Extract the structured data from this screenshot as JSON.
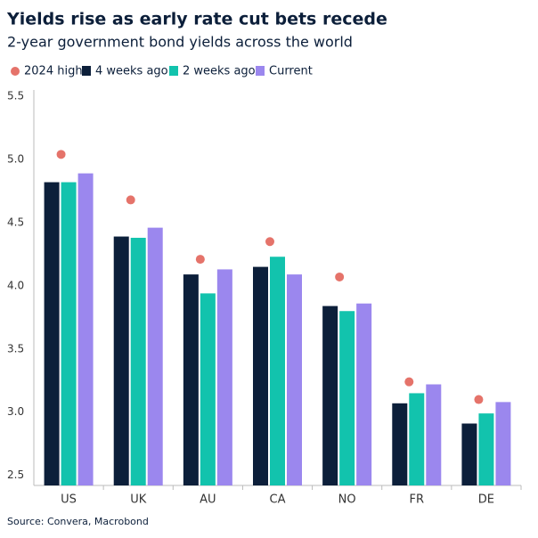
{
  "chart_data": {
    "type": "bar",
    "title": "Yields rise as early rate cut bets recede",
    "subtitle": "2-year government bond yields across the world",
    "source": "Source: Convera, Macrobond",
    "categories": [
      "US",
      "UK",
      "AU",
      "CA",
      "NO",
      "FR",
      "DE"
    ],
    "markers": {
      "name": "2024 high",
      "color": "#e5736a",
      "values": [
        5.04,
        4.68,
        4.21,
        4.35,
        4.07,
        3.24,
        3.1
      ]
    },
    "series": [
      {
        "name": "4 weeks ago",
        "color": "#0c1f3a",
        "values": [
          4.82,
          4.39,
          4.09,
          4.15,
          3.84,
          3.07,
          2.91
        ]
      },
      {
        "name": "2 weeks ago",
        "color": "#12c3ad",
        "values": [
          4.82,
          4.38,
          3.94,
          4.23,
          3.8,
          3.15,
          2.99
        ]
      },
      {
        "name": "Current",
        "color": "#9b87ee",
        "values": [
          4.89,
          4.46,
          4.13,
          4.09,
          3.86,
          3.22,
          3.08
        ]
      }
    ],
    "ylim": [
      2.42,
      5.55
    ],
    "yticks": [
      {
        "value": 2.5,
        "label": "2.5"
      },
      {
        "value": 3,
        "label": "3.0"
      },
      {
        "value": 3.5,
        "label": "3.5"
      },
      {
        "value": 4,
        "label": "4.0"
      },
      {
        "value": 4.5,
        "label": "4.5"
      },
      {
        "value": 5,
        "label": "5.0"
      },
      {
        "value": 5.5,
        "label": "5.5"
      }
    ],
    "grid": false
  }
}
